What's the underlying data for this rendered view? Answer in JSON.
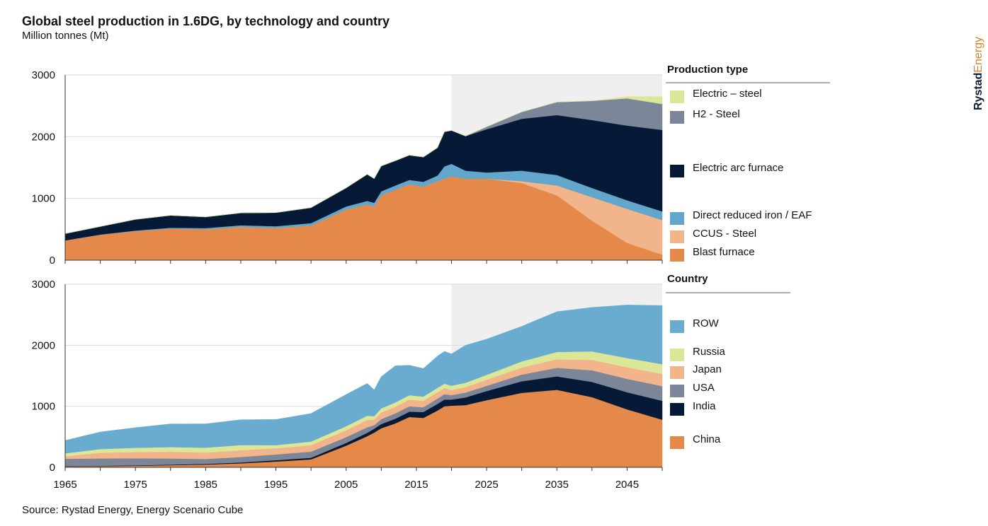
{
  "header": {
    "title": "Global steel production in 1.6DG, by technology and country",
    "subtitle": "Million tonnes (Mt)"
  },
  "footer": {
    "source": "Source: Rystad Energy, Energy Scenario Cube"
  },
  "brand": {
    "part1": "Rystad",
    "part2": "Energy",
    "color1": "#0c1b33",
    "color2": "#d9822b"
  },
  "chart_data": [
    {
      "type": "area",
      "stacked": true,
      "title": "",
      "xlabel": "",
      "ylabel": "Million tonnes (Mt)",
      "xlim": [
        1965,
        2050
      ],
      "ylim": [
        0,
        3000
      ],
      "yticks": [
        0,
        1000,
        2000,
        3000
      ],
      "xticks": [
        1965,
        1975,
        1985,
        1995,
        2005,
        2015,
        2025,
        2035,
        2045
      ],
      "grid": true,
      "forecast_shading_start": 2020,
      "legend_title": "Production type",
      "legend_position": "right",
      "x": [
        1965,
        1970,
        1975,
        1980,
        1985,
        1990,
        1995,
        2000,
        2005,
        2008,
        2009,
        2010,
        2012,
        2014,
        2016,
        2018,
        2019,
        2020,
        2022,
        2025,
        2030,
        2035,
        2040,
        2045,
        2050
      ],
      "series": [
        {
          "name": "Blast furnace",
          "color": "#e5894a",
          "values": [
            320,
            410,
            470,
            510,
            500,
            540,
            520,
            560,
            820,
            900,
            870,
            1050,
            1140,
            1230,
            1190,
            1280,
            1320,
            1360,
            1320,
            1320,
            1250,
            1050,
            640,
            280,
            90
          ]
        },
        {
          "name": "CCUS - Steel",
          "color": "#f2b48a",
          "values": [
            0,
            0,
            0,
            0,
            0,
            0,
            0,
            0,
            0,
            0,
            0,
            0,
            0,
            0,
            0,
            0,
            0,
            0,
            0,
            0,
            30,
            160,
            380,
            550,
            560
          ]
        },
        {
          "name": "Direct reduced iron / EAF",
          "color": "#62a6cb",
          "values": [
            0,
            5,
            10,
            15,
            20,
            25,
            30,
            40,
            50,
            60,
            60,
            65,
            70,
            70,
            80,
            90,
            200,
            200,
            130,
            100,
            170,
            170,
            150,
            140,
            140
          ]
        },
        {
          "name": "Electric arc furnace",
          "color": "#061a37",
          "values": [
            110,
            130,
            180,
            200,
            180,
            200,
            220,
            250,
            300,
            430,
            390,
            410,
            400,
            400,
            400,
            450,
            560,
            540,
            560,
            700,
            840,
            970,
            1100,
            1210,
            1320
          ]
        },
        {
          "name": "H2 - Steel",
          "color": "#7b8799",
          "values": [
            0,
            0,
            0,
            0,
            0,
            0,
            0,
            0,
            0,
            0,
            0,
            0,
            0,
            0,
            0,
            0,
            0,
            0,
            0,
            40,
            110,
            210,
            310,
            440,
            420
          ]
        },
        {
          "name": "Electric – steel",
          "color": "#dbe797",
          "values": [
            0,
            0,
            0,
            0,
            0,
            0,
            0,
            0,
            0,
            0,
            0,
            0,
            0,
            0,
            0,
            0,
            0,
            0,
            0,
            0,
            0,
            0,
            0,
            30,
            120
          ]
        }
      ]
    },
    {
      "type": "area",
      "stacked": true,
      "title": "",
      "xlabel": "",
      "ylabel": "Million tonnes (Mt)",
      "xlim": [
        1965,
        2050
      ],
      "ylim": [
        0,
        3000
      ],
      "yticks": [
        0,
        1000,
        2000,
        3000
      ],
      "xticks": [
        1965,
        1975,
        1985,
        1995,
        2005,
        2015,
        2025,
        2035,
        2045
      ],
      "grid": true,
      "forecast_shading_start": 2020,
      "legend_title": "Country",
      "legend_position": "right",
      "x": [
        1965,
        1970,
        1975,
        1980,
        1985,
        1990,
        1995,
        2000,
        2005,
        2008,
        2009,
        2010,
        2012,
        2014,
        2016,
        2018,
        2019,
        2020,
        2022,
        2025,
        2030,
        2035,
        2040,
        2045,
        2050
      ],
      "series": [
        {
          "name": "China",
          "color": "#e5894a",
          "values": [
            15,
            20,
            25,
            35,
            45,
            65,
            95,
            130,
            355,
            510,
            570,
            640,
            720,
            825,
            810,
            930,
            1000,
            1010,
            1020,
            1100,
            1220,
            1270,
            1150,
            950,
            780
          ]
        },
        {
          "name": "India",
          "color": "#061a37",
          "values": [
            5,
            6,
            8,
            10,
            12,
            15,
            22,
            27,
            45,
            55,
            63,
            69,
            76,
            87,
            96,
            109,
            111,
            100,
            125,
            150,
            190,
            220,
            250,
            280,
            310
          ]
        },
        {
          "name": "USA",
          "color": "#7b8799",
          "values": [
            120,
            120,
            115,
            100,
            80,
            90,
            95,
            100,
            95,
            92,
            58,
            80,
            89,
            88,
            78,
            87,
            88,
            73,
            80,
            85,
            110,
            140,
            190,
            220,
            240
          ]
        },
        {
          "name": "Japan",
          "color": "#f2b48a",
          "values": [
            40,
            93,
            102,
            111,
            105,
            110,
            101,
            106,
            112,
            119,
            88,
            110,
            107,
            111,
            105,
            104,
            99,
            83,
            89,
            100,
            115,
            140,
            170,
            190,
            200
          ]
        },
        {
          "name": "Russia",
          "color": "#dbe797",
          "values": [
            50,
            60,
            70,
            75,
            80,
            85,
            51,
            59,
            66,
            69,
            60,
            67,
            71,
            71,
            70,
            72,
            72,
            72,
            71,
            80,
            100,
            120,
            140,
            150,
            160
          ]
        },
        {
          "name": "ROW",
          "color": "#6aaccf",
          "values": [
            210,
            280,
            330,
            380,
            390,
            415,
            420,
            460,
            520,
            530,
            430,
            520,
            600,
            490,
            460,
            520,
            530,
            520,
            615,
            585,
            575,
            660,
            720,
            870,
            960
          ]
        }
      ]
    }
  ]
}
